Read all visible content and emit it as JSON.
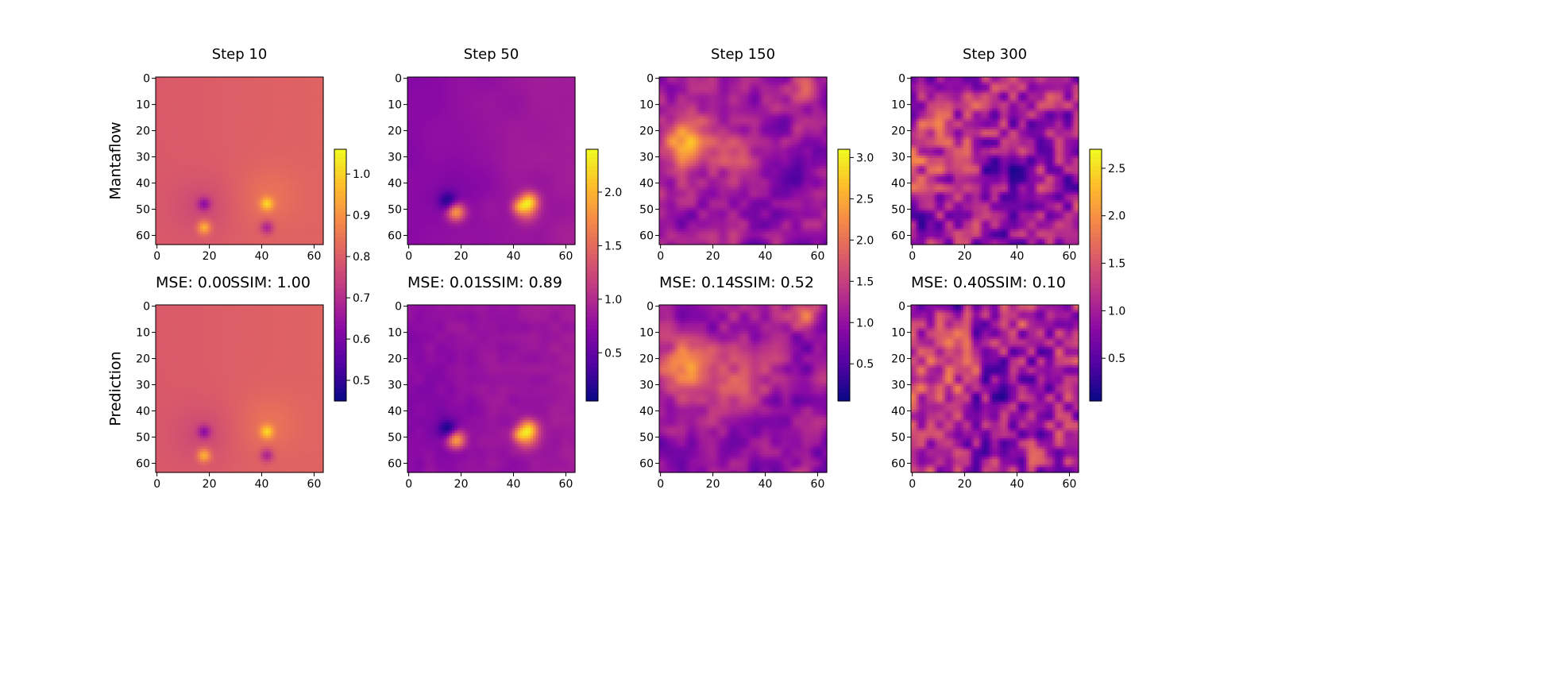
{
  "chart_data": {
    "type": "heatmap",
    "colormap": "plasma",
    "row_labels": [
      "Mantaflow",
      "Prediction"
    ],
    "grid_size": 64,
    "x_ticks": [
      0,
      20,
      40,
      60
    ],
    "y_ticks": [
      0,
      10,
      20,
      30,
      40,
      50,
      60
    ],
    "panels": [
      {
        "title": "Step 10",
        "mse_label": "MSE: 0.00",
        "ssim_label": "SSIM: 1.00",
        "mse": 0.0,
        "ssim": 1.0,
        "colorbar": {
          "vmin": 0.45,
          "vmax": 1.06,
          "ticks": [
            "0.5",
            "0.6",
            "0.7",
            "0.8",
            "0.9",
            "1.0"
          ],
          "tick_values": [
            0.5,
            0.6,
            0.7,
            0.8,
            0.9,
            1.0
          ]
        }
      },
      {
        "title": "Step 50",
        "mse_label": "MSE: 0.01",
        "ssim_label": "SSIM: 0.89",
        "mse": 0.01,
        "ssim": 0.89,
        "colorbar": {
          "vmin": 0.05,
          "vmax": 2.4,
          "ticks": [
            "0.5",
            "1.0",
            "1.5",
            "2.0"
          ],
          "tick_values": [
            0.5,
            1.0,
            1.5,
            2.0
          ]
        }
      },
      {
        "title": "Step 150",
        "mse_label": "MSE: 0.14",
        "ssim_label": "SSIM: 0.52",
        "mse": 0.14,
        "ssim": 0.52,
        "colorbar": {
          "vmin": 0.05,
          "vmax": 3.1,
          "ticks": [
            "0.5",
            "1.0",
            "1.5",
            "2.0",
            "2.5",
            "3.0"
          ],
          "tick_values": [
            0.5,
            1.0,
            1.5,
            2.0,
            2.5,
            3.0
          ]
        }
      },
      {
        "title": "Step 300",
        "mse_label": "MSE: 0.40",
        "ssim_label": "SSIM: 0.10",
        "mse": 0.4,
        "ssim": 0.1,
        "colorbar": {
          "vmin": 0.05,
          "vmax": 2.7,
          "ticks": [
            "0.5",
            "1.0",
            "1.5",
            "2.0",
            "2.5"
          ],
          "tick_values": [
            0.5,
            1.0,
            1.5,
            2.0,
            2.5
          ]
        }
      }
    ]
  }
}
